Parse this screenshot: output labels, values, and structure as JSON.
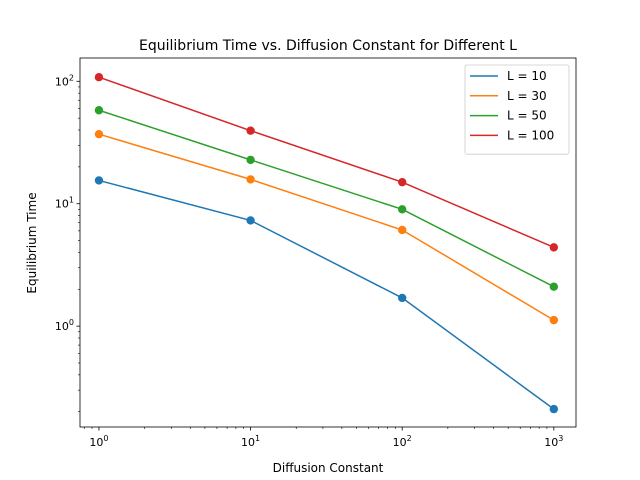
{
  "chart_data": {
    "type": "line",
    "title": "Equilibrium Time vs. Diffusion Constant for Different L",
    "xlabel": "Diffusion Constant",
    "ylabel": "Equilibrium Time",
    "xscale": "log",
    "yscale": "log",
    "xlim": [
      0.75,
      1400
    ],
    "ylim": [
      0.15,
      155
    ],
    "grid": false,
    "legend_position": "top-right",
    "x": [
      1,
      10,
      100,
      1000
    ],
    "x_tick_labels": [
      {
        "value": 1,
        "base": "10",
        "exp": "0"
      },
      {
        "value": 10,
        "base": "10",
        "exp": "1"
      },
      {
        "value": 100,
        "base": "10",
        "exp": "2"
      },
      {
        "value": 1000,
        "base": "10",
        "exp": "3"
      }
    ],
    "y_tick_labels": [
      {
        "value": 1,
        "base": "10",
        "exp": "0"
      },
      {
        "value": 10,
        "base": "10",
        "exp": "1"
      },
      {
        "value": 100,
        "base": "10",
        "exp": "2"
      }
    ],
    "series": [
      {
        "name": "L = 10",
        "color": "#1f77b4",
        "values": [
          15.5,
          7.3,
          1.7,
          0.21
        ]
      },
      {
        "name": "L = 30",
        "color": "#ff7f0e",
        "values": [
          37.0,
          15.8,
          6.1,
          1.12
        ]
      },
      {
        "name": "L = 50",
        "color": "#2ca02c",
        "values": [
          58.0,
          22.8,
          9.0,
          2.1
        ]
      },
      {
        "name": "L = 100",
        "color": "#d62728",
        "values": [
          108.0,
          39.5,
          15.0,
          4.4
        ]
      }
    ]
  }
}
